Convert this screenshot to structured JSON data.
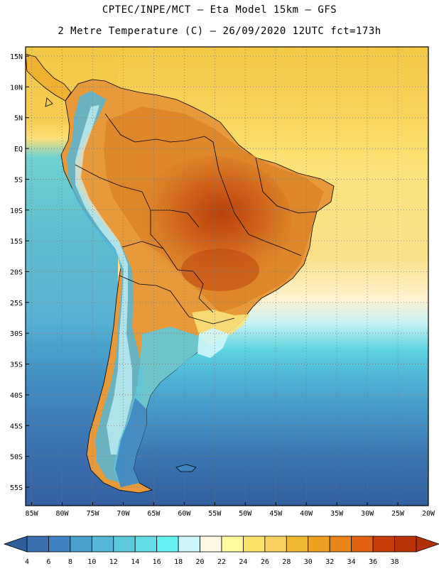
{
  "header": {
    "line1": "CPTEC/INPE/MCT —  Eta Model 15km — GFS",
    "line2": "2 Metre Temperature (C) — 26/09/2020 12UTC fct=173h"
  },
  "map": {
    "lat_labels": [
      "15N",
      "10N",
      "5N",
      "EQ",
      "5S",
      "10S",
      "15S",
      "20S",
      "25S",
      "30S",
      "35S",
      "40S",
      "45S",
      "50S",
      "55S"
    ],
    "lat_values": [
      15,
      10,
      5,
      0,
      -5,
      -10,
      -15,
      -20,
      -25,
      -30,
      -35,
      -40,
      -45,
      -50,
      -55
    ],
    "lon_labels": [
      "85W",
      "80W",
      "75W",
      "70W",
      "65W",
      "60W",
      "55W",
      "50W",
      "45W",
      "40W",
      "35W",
      "30W",
      "25W",
      "20W"
    ],
    "lon_values": [
      -85,
      -80,
      -75,
      -70,
      -65,
      -60,
      -55,
      -50,
      -45,
      -40,
      -35,
      -30,
      -25,
      -20
    ],
    "lat_range": [
      -58,
      16.5
    ],
    "lon_range": [
      -86,
      -20
    ]
  },
  "colorbar": {
    "labels": [
      "4",
      "6",
      "8",
      "10",
      "12",
      "14",
      "16",
      "18",
      "20",
      "22",
      "24",
      "26",
      "28",
      "30",
      "32",
      "34",
      "36",
      "38"
    ],
    "colors": [
      "#3a70b0",
      "#3f83c0",
      "#4aa0cc",
      "#55b6d8",
      "#5fc9dc",
      "#63dde6",
      "#66f2f2",
      "#cdf6fb",
      "#fff8e4",
      "#fffa9e",
      "#fbe26a",
      "#f7d060",
      "#f0b830",
      "#f0a020",
      "#e8841a",
      "#e06010",
      "#c83c08",
      "#b83408"
    ]
  }
}
